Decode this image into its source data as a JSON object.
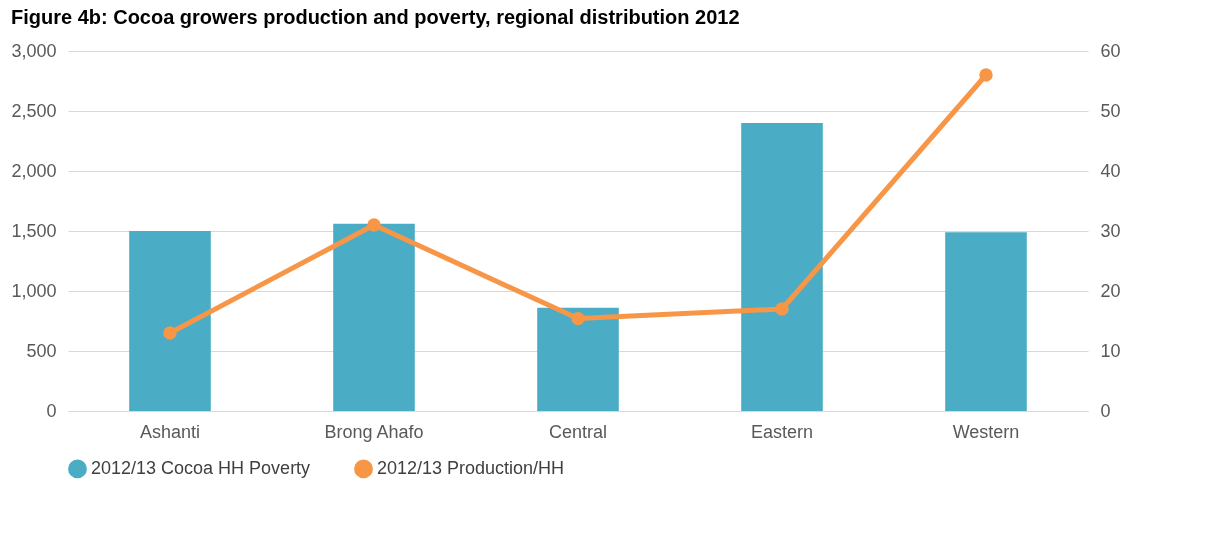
{
  "chart_data": {
    "type": "bar",
    "title": "Figure 4b: Cocoa growers production and poverty, regional distribution 2012",
    "categories": [
      "Ashanti",
      "Brong Ahafo",
      "Central",
      "Eastern",
      "Western"
    ],
    "series": [
      {
        "name": "2012/13 Cocoa HH Poverty",
        "color": "#4bacc6",
        "values": [
          1500,
          1560,
          860,
          2400,
          1490
        ]
      },
      {
        "name": "2012/13 Production/HH",
        "type": "line",
        "axis": "y2",
        "color": "#f79646",
        "values": [
          13,
          31,
          15.4,
          17,
          56
        ]
      }
    ],
    "ylim": [
      0,
      3000
    ],
    "yticks": [
      {
        "value": 0,
        "label": "0"
      },
      {
        "value": 500,
        "label": "500"
      },
      {
        "value": 1000,
        "label": "1,000"
      },
      {
        "value": 1500,
        "label": "1,500"
      },
      {
        "value": 2000,
        "label": "2,000"
      },
      {
        "value": 2500,
        "label": "2,500"
      },
      {
        "value": 3000,
        "label": "3,000"
      }
    ],
    "y2lim": [
      0,
      60
    ],
    "y2ticks": [
      0,
      10,
      20,
      30,
      40,
      50,
      60
    ],
    "grid": "y",
    "legend": "bottom",
    "marker": "circle",
    "line_style": "solid"
  }
}
